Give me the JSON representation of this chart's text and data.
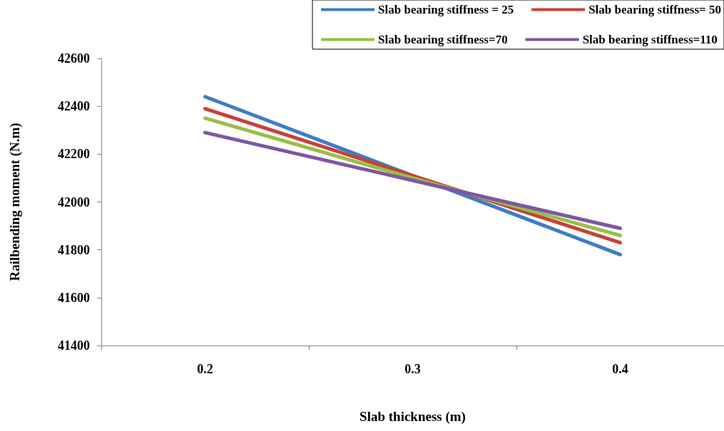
{
  "chart_data": {
    "type": "line",
    "xlabel": "Slab thickness (m)",
    "ylabel": "Railbending moment (N.m)",
    "categories": [
      "0.2",
      "0.3",
      "0.4"
    ],
    "series": [
      {
        "name": "Slab bearing stiffness = 25",
        "color": "#3d7cc9",
        "values": [
          42440,
          42110,
          41780
        ]
      },
      {
        "name": "Slab bearing stiffness= 50",
        "color": "#c9403a",
        "values": [
          42390,
          42110,
          41830
        ]
      },
      {
        "name": "Slab bearing stiffness=70",
        "color": "#98bf45",
        "values": [
          42350,
          42100,
          41860
        ]
      },
      {
        "name": "Slab bearing stiffness=110",
        "color": "#7d57a3",
        "values": [
          42290,
          42090,
          41890
        ]
      }
    ],
    "ylim": [
      41400,
      42600
    ],
    "yticks": [
      41400,
      41600,
      41800,
      42000,
      42200,
      42400,
      42600
    ],
    "grid": false,
    "legend": "top right",
    "marker": "none",
    "line_style": "solid"
  }
}
